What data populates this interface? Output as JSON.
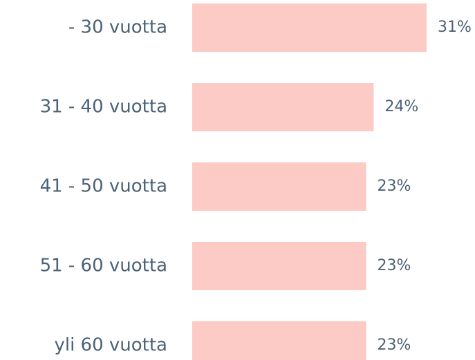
{
  "chart_data": {
    "type": "barh",
    "categories": [
      "- 30 vuotta",
      "31 - 40 vuotta",
      "41 - 50 vuotta",
      "51 - 60 vuotta",
      "yli 60 vuotta"
    ],
    "values": [
      31,
      24,
      23,
      23,
      23
    ],
    "value_labels": [
      "31%",
      "24%",
      "23%",
      "23%",
      "23%"
    ],
    "color": "#fccbc6"
  }
}
